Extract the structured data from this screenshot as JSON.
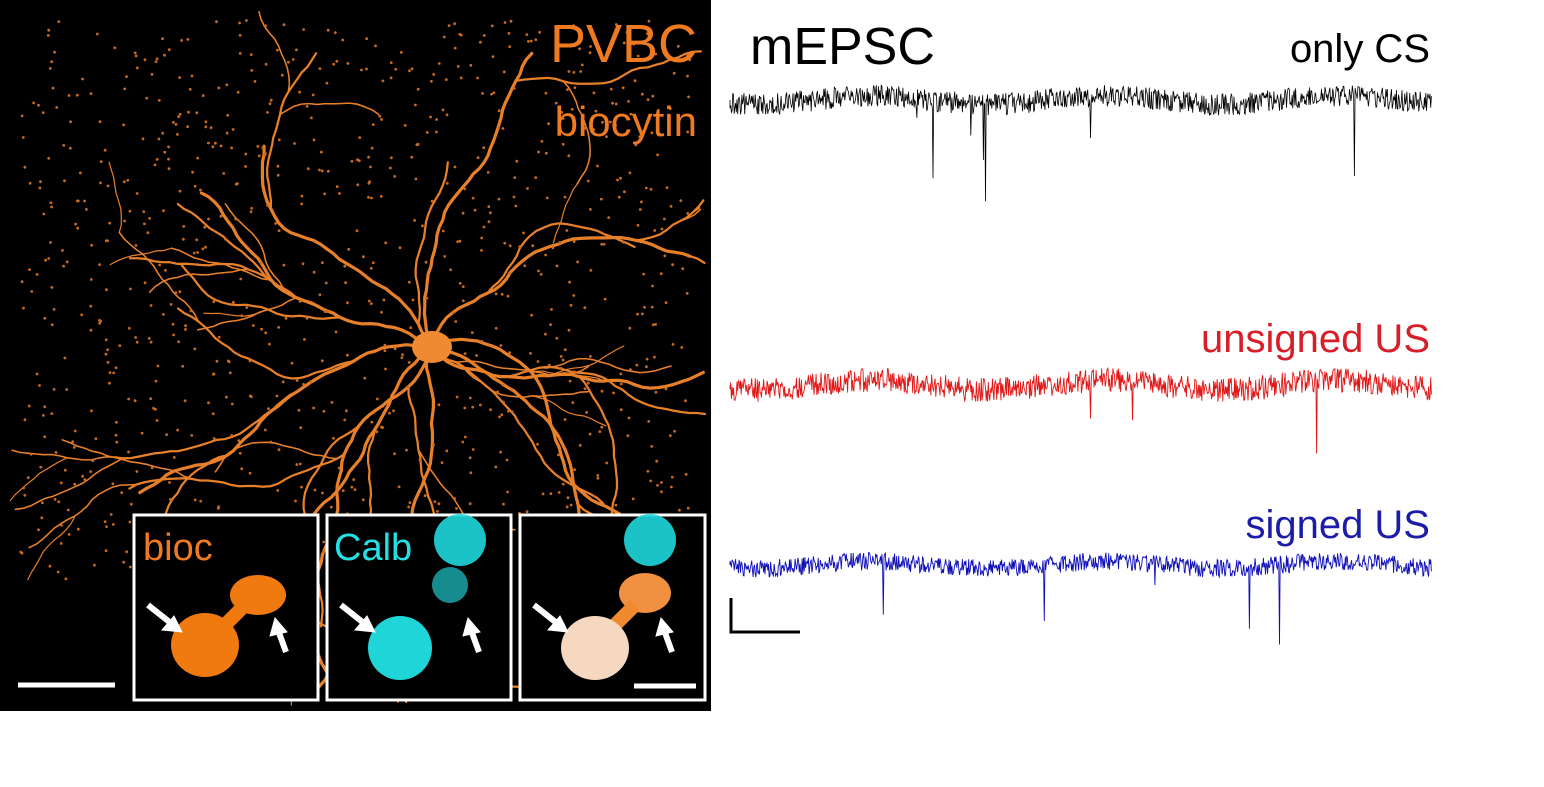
{
  "image_panel": {
    "title": "PVBC",
    "subtitle": "biocytin",
    "insets": [
      {
        "label": "bioc"
      },
      {
        "label": "Calb"
      }
    ]
  },
  "traces_panel": {
    "title": "mEPSC",
    "traces": [
      {
        "label": "only CS"
      },
      {
        "label": "unsigned US"
      },
      {
        "label": "signed US"
      }
    ]
  }
}
